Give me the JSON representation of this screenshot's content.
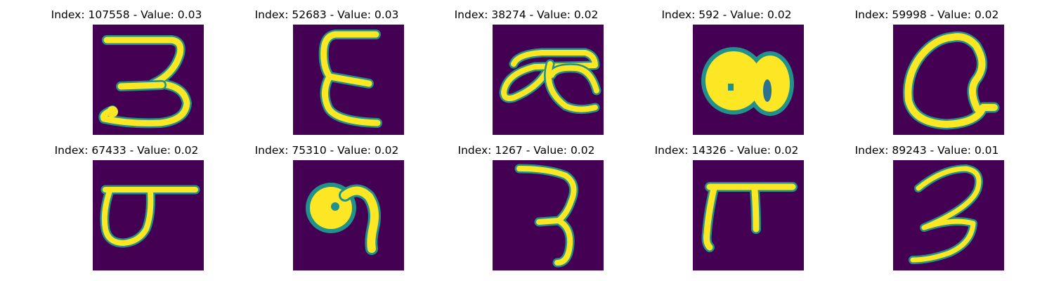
{
  "colors": {
    "background": "#440154",
    "stroke_core": "#fde725",
    "stroke_edge": "#21918c",
    "stroke_mid": "#5ec962",
    "page": "#ffffff"
  },
  "panels": [
    {
      "title": "Index: 107558 - Value: 0.03",
      "glyph": "handwritten-glyph-3-like"
    },
    {
      "title": "Index: 52683 - Value: 0.03",
      "glyph": "handwritten-glyph-epsilon-like"
    },
    {
      "title": "Index: 38274 - Value: 0.02",
      "glyph": "handwritten-glyph-loop-hook"
    },
    {
      "title": "Index: 592 - Value: 0.02",
      "glyph": "handwritten-glyph-blob-double"
    },
    {
      "title": "Index: 59998 - Value: 0.02",
      "glyph": "handwritten-glyph-oval-loop"
    },
    {
      "title": "Index: 67433 - Value: 0.02",
      "glyph": "handwritten-glyph-cup-bar"
    },
    {
      "title": "Index: 75310 - Value: 0.02",
      "glyph": "handwritten-glyph-curl"
    },
    {
      "title": "Index: 1267 - Value: 0.02",
      "glyph": "handwritten-glyph-3-like"
    },
    {
      "title": "Index: 14326 - Value: 0.02",
      "glyph": "handwritten-glyph-pi-like"
    },
    {
      "title": "Index: 89243 - Value: 0.01",
      "glyph": "handwritten-glyph-3-like"
    }
  ]
}
